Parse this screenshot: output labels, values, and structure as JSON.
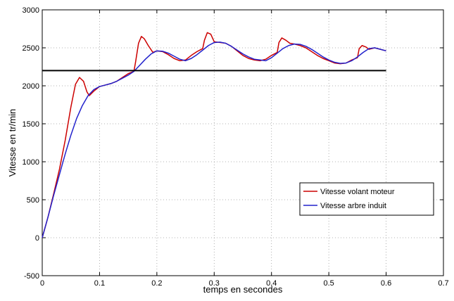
{
  "chart_data": {
    "type": "line",
    "title": "",
    "xlabel": "temps en secondes",
    "ylabel": "Vitesse en tr/min",
    "xlim": [
      0,
      0.7
    ],
    "ylim": [
      -500,
      3000
    ],
    "xticks": [
      "0",
      "0.1",
      "0.2",
      "0.3",
      "0.4",
      "0.5",
      "0.6",
      "0.7"
    ],
    "yticks": [
      "-500",
      "0",
      "500",
      "1000",
      "1500",
      "2000",
      "2500",
      "3000"
    ],
    "xtick_values": [
      0,
      0.1,
      0.2,
      0.3,
      0.4,
      0.5,
      0.6,
      0.7
    ],
    "ytick_values": [
      -500,
      0,
      500,
      1000,
      1500,
      2000,
      2500,
      3000
    ],
    "grid": true,
    "legend_position": "right, lower-middle",
    "series": [
      {
        "name": "Vitesse volant moteur",
        "color": "#cc0000",
        "x": [
          0,
          0.01,
          0.02,
          0.03,
          0.04,
          0.05,
          0.058,
          0.065,
          0.072,
          0.078,
          0.082,
          0.09,
          0.1,
          0.11,
          0.12,
          0.13,
          0.14,
          0.15,
          0.16,
          0.163,
          0.168,
          0.173,
          0.178,
          0.185,
          0.193,
          0.2,
          0.21,
          0.22,
          0.23,
          0.24,
          0.25,
          0.26,
          0.27,
          0.28,
          0.283,
          0.288,
          0.294,
          0.3,
          0.31,
          0.32,
          0.33,
          0.34,
          0.35,
          0.36,
          0.37,
          0.38,
          0.39,
          0.4,
          0.41,
          0.413,
          0.418,
          0.425,
          0.432,
          0.44,
          0.45,
          0.46,
          0.47,
          0.48,
          0.49,
          0.5,
          0.51,
          0.52,
          0.53,
          0.54,
          0.55,
          0.553,
          0.558,
          0.565,
          0.57,
          0.58,
          0.59,
          0.6
        ],
        "y": [
          0,
          270,
          580,
          900,
          1280,
          1720,
          2020,
          2110,
          2060,
          1920,
          1870,
          1930,
          1990,
          2010,
          2030,
          2060,
          2110,
          2160,
          2190,
          2320,
          2560,
          2650,
          2620,
          2530,
          2440,
          2460,
          2450,
          2410,
          2360,
          2330,
          2340,
          2400,
          2450,
          2490,
          2600,
          2700,
          2680,
          2580,
          2570,
          2560,
          2520,
          2460,
          2400,
          2360,
          2340,
          2330,
          2350,
          2400,
          2440,
          2570,
          2630,
          2600,
          2560,
          2550,
          2530,
          2500,
          2450,
          2400,
          2360,
          2330,
          2300,
          2290,
          2300,
          2340,
          2370,
          2490,
          2530,
          2510,
          2480,
          2500,
          2480,
          2460
        ]
      },
      {
        "name": "Vitesse arbre induit",
        "color": "#2222cc",
        "x": [
          0,
          0.01,
          0.02,
          0.03,
          0.04,
          0.05,
          0.06,
          0.07,
          0.08,
          0.09,
          0.1,
          0.11,
          0.12,
          0.13,
          0.14,
          0.15,
          0.16,
          0.17,
          0.18,
          0.19,
          0.2,
          0.21,
          0.22,
          0.23,
          0.24,
          0.25,
          0.26,
          0.27,
          0.28,
          0.29,
          0.3,
          0.31,
          0.32,
          0.33,
          0.34,
          0.35,
          0.36,
          0.37,
          0.38,
          0.39,
          0.4,
          0.41,
          0.42,
          0.43,
          0.44,
          0.45,
          0.46,
          0.47,
          0.48,
          0.49,
          0.5,
          0.51,
          0.52,
          0.53,
          0.54,
          0.55,
          0.56,
          0.57,
          0.58,
          0.59,
          0.6
        ],
        "y": [
          0,
          270,
          560,
          830,
          1100,
          1350,
          1570,
          1740,
          1870,
          1950,
          1990,
          2010,
          2030,
          2060,
          2100,
          2140,
          2190,
          2270,
          2350,
          2420,
          2460,
          2455,
          2430,
          2390,
          2350,
          2330,
          2360,
          2410,
          2470,
          2530,
          2570,
          2575,
          2560,
          2520,
          2470,
          2420,
          2380,
          2350,
          2340,
          2330,
          2370,
          2430,
          2490,
          2530,
          2550,
          2545,
          2520,
          2480,
          2430,
          2380,
          2340,
          2310,
          2295,
          2300,
          2330,
          2380,
          2440,
          2490,
          2500,
          2480,
          2460
        ]
      },
      {
        "name": "",
        "color": "#000000",
        "x": [
          0,
          0.6
        ],
        "y": [
          2200,
          2200
        ]
      }
    ]
  },
  "legend": {
    "items": [
      {
        "label": "Vitesse volant moteur",
        "color": "#cc0000"
      },
      {
        "label": "Vitesse arbre induit",
        "color": "#2222cc"
      }
    ]
  }
}
